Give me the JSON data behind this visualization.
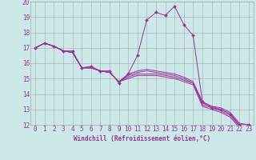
{
  "background_color": "#cce8e8",
  "grid_color": "#aaaaaa",
  "line_color": "#993399",
  "marker_color": "#993399",
  "xlabel": "Windchill (Refroidissement éolien,°C)",
  "xlim": [
    -0.5,
    23.5
  ],
  "ylim": [
    12,
    20
  ],
  "xticks": [
    0,
    1,
    2,
    3,
    4,
    5,
    6,
    7,
    8,
    9,
    10,
    11,
    12,
    13,
    14,
    15,
    16,
    17,
    18,
    19,
    20,
    21,
    22,
    23
  ],
  "yticks": [
    12,
    13,
    14,
    15,
    16,
    17,
    18,
    19,
    20
  ],
  "series": [
    [
      17.0,
      17.3,
      17.1,
      16.8,
      16.8,
      15.7,
      15.8,
      15.5,
      15.5,
      14.7,
      15.3,
      16.5,
      18.8,
      19.3,
      19.1,
      19.7,
      18.5,
      17.8,
      13.5,
      13.1,
      13.0,
      12.7,
      12.0,
      12.0
    ],
    [
      17.0,
      17.3,
      17.1,
      16.8,
      16.7,
      15.7,
      15.7,
      15.5,
      15.4,
      14.8,
      15.3,
      15.5,
      15.6,
      15.5,
      15.4,
      15.3,
      15.1,
      14.8,
      13.5,
      13.2,
      13.1,
      12.8,
      12.1,
      12.0
    ],
    [
      17.0,
      17.3,
      17.1,
      16.8,
      16.7,
      15.7,
      15.7,
      15.5,
      15.4,
      14.8,
      15.2,
      15.4,
      15.5,
      15.4,
      15.3,
      15.2,
      15.0,
      14.7,
      13.4,
      13.2,
      13.0,
      12.7,
      12.0,
      12.0
    ],
    [
      17.0,
      17.3,
      17.1,
      16.8,
      16.7,
      15.7,
      15.7,
      15.5,
      15.4,
      14.8,
      15.1,
      15.3,
      15.3,
      15.3,
      15.2,
      15.1,
      14.9,
      14.7,
      13.3,
      13.1,
      12.9,
      12.6,
      11.9,
      11.9
    ],
    [
      17.0,
      17.3,
      17.1,
      16.8,
      16.7,
      15.7,
      15.7,
      15.5,
      15.4,
      14.8,
      15.0,
      15.2,
      15.2,
      15.2,
      15.1,
      15.0,
      14.8,
      14.6,
      13.2,
      13.0,
      12.8,
      12.5,
      11.8,
      11.8
    ]
  ],
  "tick_fontsize": 5.5,
  "xlabel_fontsize": 5.5,
  "linewidth": 0.7,
  "markersize": 2.0
}
